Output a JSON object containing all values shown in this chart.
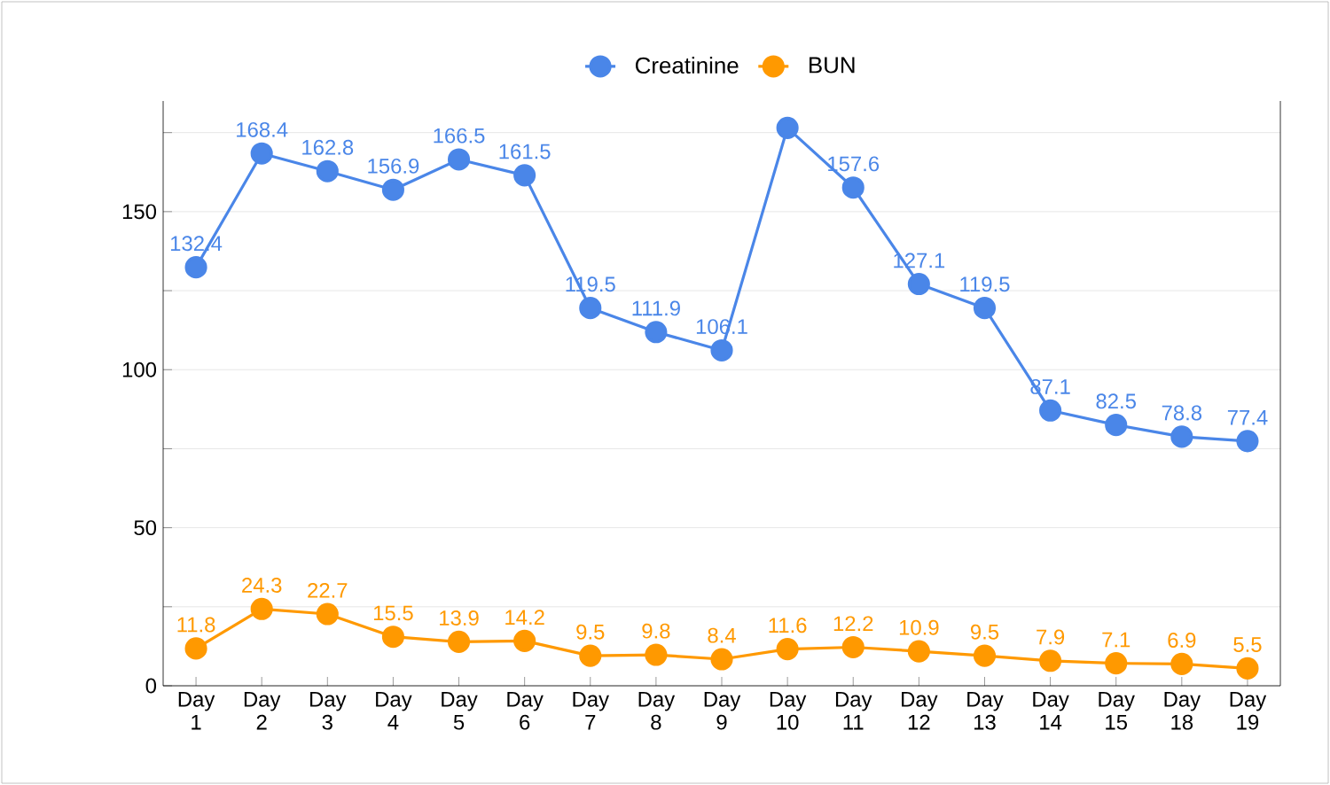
{
  "chart_data": {
    "type": "line",
    "categories": [
      "Day 1",
      "Day 2",
      "Day 3",
      "Day 4",
      "Day 5",
      "Day 6",
      "Day 7",
      "Day 8",
      "Day 9",
      "Day 10",
      "Day 11",
      "Day 12",
      "Day 13",
      "Day 14",
      "Day 15",
      "Day 18",
      "Day 19"
    ],
    "series": [
      {
        "name": "Creatinine",
        "color": "#4a86e8",
        "values": [
          132.4,
          168.4,
          162.8,
          156.9,
          166.5,
          161.5,
          119.5,
          111.9,
          106.1,
          176.5,
          157.6,
          127.1,
          119.5,
          87.1,
          82.5,
          78.8,
          77.4
        ],
        "value_labels": [
          "132.4",
          "168.4",
          "162.8",
          "156.9",
          "166.5",
          "161.5",
          "119.5",
          "111.9",
          "106.1",
          null,
          "157.6",
          "127.1",
          "119.5",
          "87.1",
          "82.5",
          "78.8",
          "77.4"
        ]
      },
      {
        "name": "BUN",
        "color": "#ff9900",
        "values": [
          11.8,
          24.3,
          22.7,
          15.5,
          13.9,
          14.2,
          9.5,
          9.8,
          8.4,
          11.6,
          12.2,
          10.9,
          9.5,
          7.9,
          7.1,
          6.9,
          5.5
        ],
        "value_labels": [
          "11.8",
          "24.3",
          "22.7",
          "15.5",
          "13.9",
          "14.2",
          "9.5",
          "9.8",
          "8.4",
          "11.6",
          "12.2",
          "10.9",
          "9.5",
          "7.9",
          "7.1",
          "6.9",
          "5.5"
        ]
      }
    ],
    "ylim": [
      0,
      185
    ],
    "yticks": [
      0,
      {
        "value": 25,
        "label": null
      },
      50,
      {
        "value": 75,
        "label": null
      },
      100,
      {
        "value": 125,
        "label": null
      },
      150,
      {
        "value": 175,
        "label": null
      }
    ],
    "grid": "y",
    "legend": "top",
    "marker": "circle",
    "line_style": "solid"
  }
}
